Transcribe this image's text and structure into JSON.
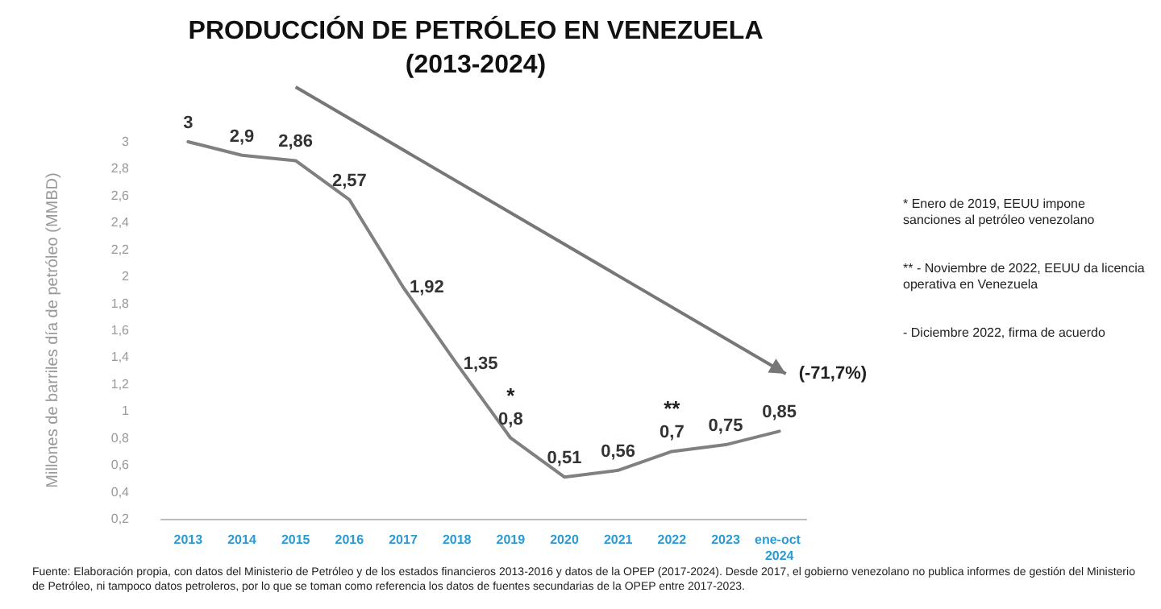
{
  "chart_data": {
    "type": "line",
    "title": "PRODUCCIÓN DE PETRÓLEO EN VENEZUELA",
    "subtitle": "(2013-2024)",
    "ylabel": "Millones de barriles día de petróleo (MMBD)",
    "categories": [
      "2013",
      "2014",
      "2015",
      "2016",
      "2017",
      "2018",
      "2019",
      "2020",
      "2021",
      "2022",
      "2023",
      "ene-oct 2024"
    ],
    "series": [
      {
        "color": "#808080",
        "values": [
          3,
          2.9,
          2.86,
          2.57,
          1.92,
          1.35,
          0.8,
          0.51,
          0.56,
          0.7,
          0.75,
          0.85
        ],
        "value_labels": [
          "3",
          "2,9",
          "2,86",
          "2,57",
          "1,92",
          "1,35",
          "0,8",
          "0,51",
          "0,56",
          "0,7",
          "0,75",
          "0,85"
        ]
      }
    ],
    "ylim": [
      0.2,
      3
    ],
    "yticks": [
      {
        "value": 0.2,
        "label": "0,2"
      },
      {
        "value": 0.4,
        "label": "0,4"
      },
      {
        "value": 0.6,
        "label": "0,6"
      },
      {
        "value": 0.8,
        "label": "0,8"
      },
      1,
      {
        "value": 1.2,
        "label": "1,2"
      },
      {
        "value": 1.4,
        "label": "1,4"
      },
      {
        "value": 1.6,
        "label": "1,6"
      },
      {
        "value": 1.8,
        "label": "1,8"
      },
      2,
      {
        "value": 2.2,
        "label": "2,2"
      },
      {
        "value": 2.4,
        "label": "2,4"
      },
      {
        "value": 2.6,
        "label": "2,6"
      },
      {
        "value": 2.8,
        "label": "2,8"
      },
      3
    ],
    "grid": false,
    "marker": "none",
    "line_style": "solid",
    "annotations": [
      {
        "text": "*",
        "x": "2019",
        "y": 0.8
      },
      {
        "text": "**",
        "x": "2022",
        "y": 0.7
      },
      "(-71,7%)",
      "* Enero de 2019, EEUU impone sanciones al petróleo venezolano",
      "** - Noviembre de 2022, EEUU da licencia operativa en Venezuela",
      "- Diciembre 2022, firma de acuerdo",
      "Fuente: Elaboración propia, con datos del Ministerio de Petróleo y de los estados financieros 2013-2016 y datos de la OPEP (2017-2024). Desde 2017, el gobierno venezolano no publica informes de gestión del Ministerio de Petróleo, ni tampoco datos petroleros, por lo que se toman como referencia los datos de fuentes secundarias de la OPEP entre 2017-2023."
    ]
  }
}
